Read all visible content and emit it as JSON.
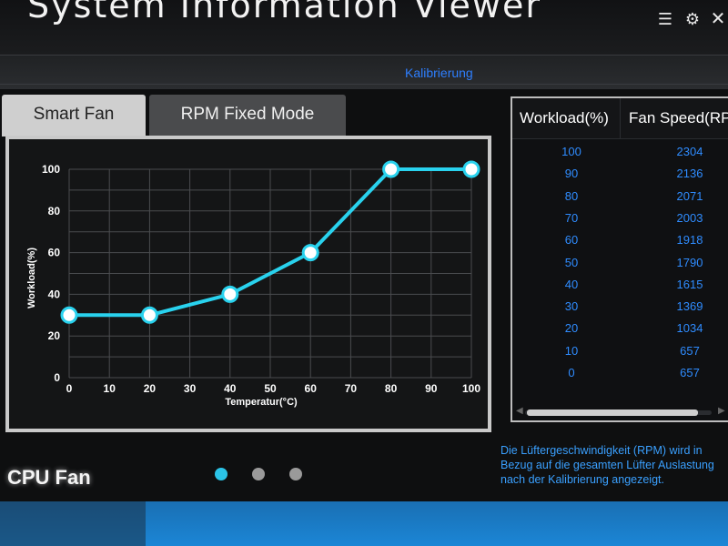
{
  "app": {
    "title": "System Information Viewer"
  },
  "window_controls": [
    {
      "icon": "list-icon",
      "glyph": "☰"
    },
    {
      "icon": "gear-icon",
      "glyph": "⚙"
    },
    {
      "icon": "close-icon",
      "glyph": "✕"
    }
  ],
  "subtabs": {
    "active": "Kalibrierung"
  },
  "mode_tabs": {
    "smart": "Smart Fan",
    "rpm": "RPM Fixed Mode"
  },
  "chart_data": {
    "type": "line",
    "xlabel": "Temperatur(°C)",
    "ylabel": "Workload(%)",
    "xlim": [
      0,
      100
    ],
    "ylim": [
      0,
      100
    ],
    "x_ticks": [
      0,
      10,
      20,
      30,
      40,
      50,
      60,
      70,
      80,
      90,
      100
    ],
    "y_ticks": [
      0,
      20,
      40,
      60,
      80,
      100
    ],
    "grid": true,
    "series": [
      {
        "x": [
          0,
          20,
          40,
          60,
          80,
          100
        ],
        "y": [
          30,
          30,
          40,
          60,
          100,
          100
        ]
      }
    ],
    "colors": {
      "line": "#29d2ee",
      "point": "#ffffff",
      "grid": "#4a4c4f",
      "background": "#141516"
    }
  },
  "table": {
    "headers": [
      "Workload(%)",
      "Fan Speed(RPI"
    ],
    "rows": [
      {
        "workload": "100",
        "rpm": "2304"
      },
      {
        "workload": "90",
        "rpm": "2136"
      },
      {
        "workload": "80",
        "rpm": "2071"
      },
      {
        "workload": "70",
        "rpm": "2003"
      },
      {
        "workload": "60",
        "rpm": "1918"
      },
      {
        "workload": "50",
        "rpm": "1790"
      },
      {
        "workload": "40",
        "rpm": "1615"
      },
      {
        "workload": "30",
        "rpm": "1369"
      },
      {
        "workload": "20",
        "rpm": "1034"
      },
      {
        "workload": "10",
        "rpm": "657"
      },
      {
        "workload": "0",
        "rpm": "657"
      }
    ]
  },
  "footer": {
    "fan_label": "CPU Fan",
    "note": "Die Lüftergeschwindigkeit (RPM) wird in Bezug auf die gesamten Lüfter Auslastung nach der Kalibrierung angezeigt."
  },
  "colors": {
    "accent_blue": "#2f8cff",
    "curve_cyan": "#29d2ee",
    "active_dot": "#2bc4e8"
  }
}
